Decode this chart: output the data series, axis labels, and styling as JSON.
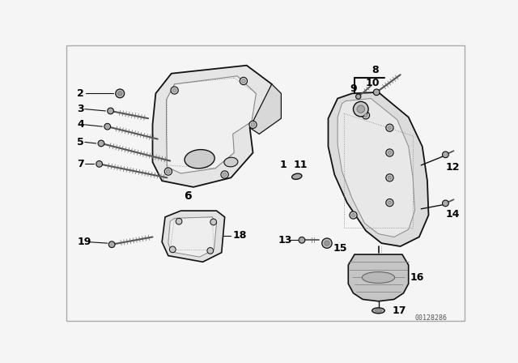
{
  "background_color": "#f5f5f5",
  "line_color": "#111111",
  "watermark": "00128286",
  "bracket_color": "#e8e8e8",
  "arm_color": "#dcdcdc",
  "bolt_color": "#888888",
  "shadow_color": "#cccccc",
  "dot_color": "#777777"
}
